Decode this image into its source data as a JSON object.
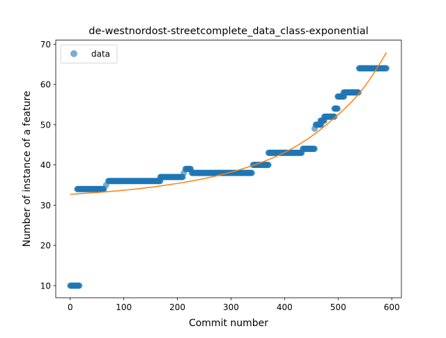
{
  "chart_data": {
    "type": "scatter",
    "title": "de-westnordost-streetcomplete_data_class-exponential",
    "xlabel": "Commit number",
    "ylabel": "Number of instance of a feature",
    "xlim": [
      -27,
      618
    ],
    "ylim": [
      7,
      71
    ],
    "xticks": [
      0,
      100,
      200,
      300,
      400,
      500,
      600
    ],
    "yticks": [
      10,
      20,
      30,
      40,
      50,
      60,
      70
    ],
    "legend": {
      "placement": "top-left",
      "entries": [
        "data"
      ]
    },
    "colors": {
      "data": "#1f77b4",
      "fit": "#ff7f0e"
    },
    "series": [
      {
        "name": "data",
        "kind": "scatter",
        "segments": [
          {
            "x": [
              0,
              17
            ],
            "y": 10
          },
          {
            "x": [
              13,
              63
            ],
            "y": 34
          },
          {
            "x": 67,
            "y": 35
          },
          {
            "x": [
              71,
              168
            ],
            "y": 36
          },
          {
            "x": [
              168,
              210
            ],
            "y": 37
          },
          {
            "x": 212,
            "y": 38
          },
          {
            "x": [
              215,
              225
            ],
            "y": 39
          },
          {
            "x": [
              227,
              339
            ],
            "y": 38
          },
          {
            "x": [
              341,
              370
            ],
            "y": 40
          },
          {
            "x": [
              370,
              432
            ],
            "y": 43
          },
          {
            "x": [
              434,
              456
            ],
            "y": 44
          },
          {
            "x": 456,
            "y": 49
          },
          {
            "x": [
              458,
              468
            ],
            "y": 50
          },
          {
            "x": [
              467,
              474
            ],
            "y": 51
          },
          {
            "x": [
              474,
              493
            ],
            "y": 52
          },
          {
            "x": [
              493,
              499
            ],
            "y": 54
          },
          {
            "x": [
              499,
              511
            ],
            "y": 57
          },
          {
            "x": [
              510,
              538
            ],
            "y": 58
          },
          {
            "x": [
              539,
              590
            ],
            "y": 64
          }
        ]
      },
      {
        "kind": "line",
        "x": [
          0,
          100,
          200,
          250,
          300,
          350,
          400,
          450,
          500,
          550,
          590
        ],
        "y": [
          32.7,
          33.7,
          35.4,
          36.6,
          38.2,
          40.3,
          43.1,
          47.1,
          52.5,
          59.6,
          67.9
        ]
      }
    ]
  }
}
